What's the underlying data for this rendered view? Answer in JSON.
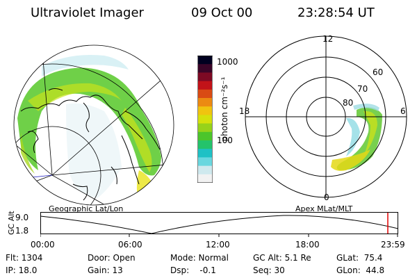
{
  "header": {
    "instrument": "Ultraviolet Imager",
    "date": "09 Oct 00",
    "time": "23:28:54 UT"
  },
  "colorbar": {
    "unit_label": "photon cm⁻²s⁻¹",
    "ticks": [
      "1000",
      "100"
    ],
    "colors": [
      "#f2f2f2",
      "#cfe9ee",
      "#69d7df",
      "#1fc1c5",
      "#24c36b",
      "#4cc52b",
      "#97d21a",
      "#d5e10c",
      "#f0c40f",
      "#ec8a12",
      "#d94b14",
      "#c21319",
      "#7d0a24",
      "#3a0528",
      "#000020"
    ]
  },
  "left_map": {
    "label": "Geographic Lat/Lon",
    "accent": "#60d020"
  },
  "right_map": {
    "label": "Apex MLat/MLT",
    "mlt_labels": {
      "top": "12",
      "left": "18",
      "right": "6",
      "bottom": "0"
    },
    "lat_labels": [
      "60",
      "70",
      "80"
    ]
  },
  "altitude_plot": {
    "ylabel": "GC Alt",
    "ymax": "9.0",
    "ymin": "1.8",
    "xticks": [
      "00:00",
      "06:00",
      "12:00",
      "18:00",
      "23:59"
    ],
    "marker_color": "#e00000"
  },
  "status": {
    "flt": "Flt: 1304",
    "ip": "IP: 18.0",
    "door": "Door: Open",
    "gain": "Gain: 13",
    "mode": "Mode: Normal",
    "dsp": "Dsp:    -0.1",
    "gcalt": "GC Alt: 5.1 Re",
    "seq": "Seq: 30",
    "glat": "GLat:  75.4",
    "glon": "GLon:  44.8"
  }
}
